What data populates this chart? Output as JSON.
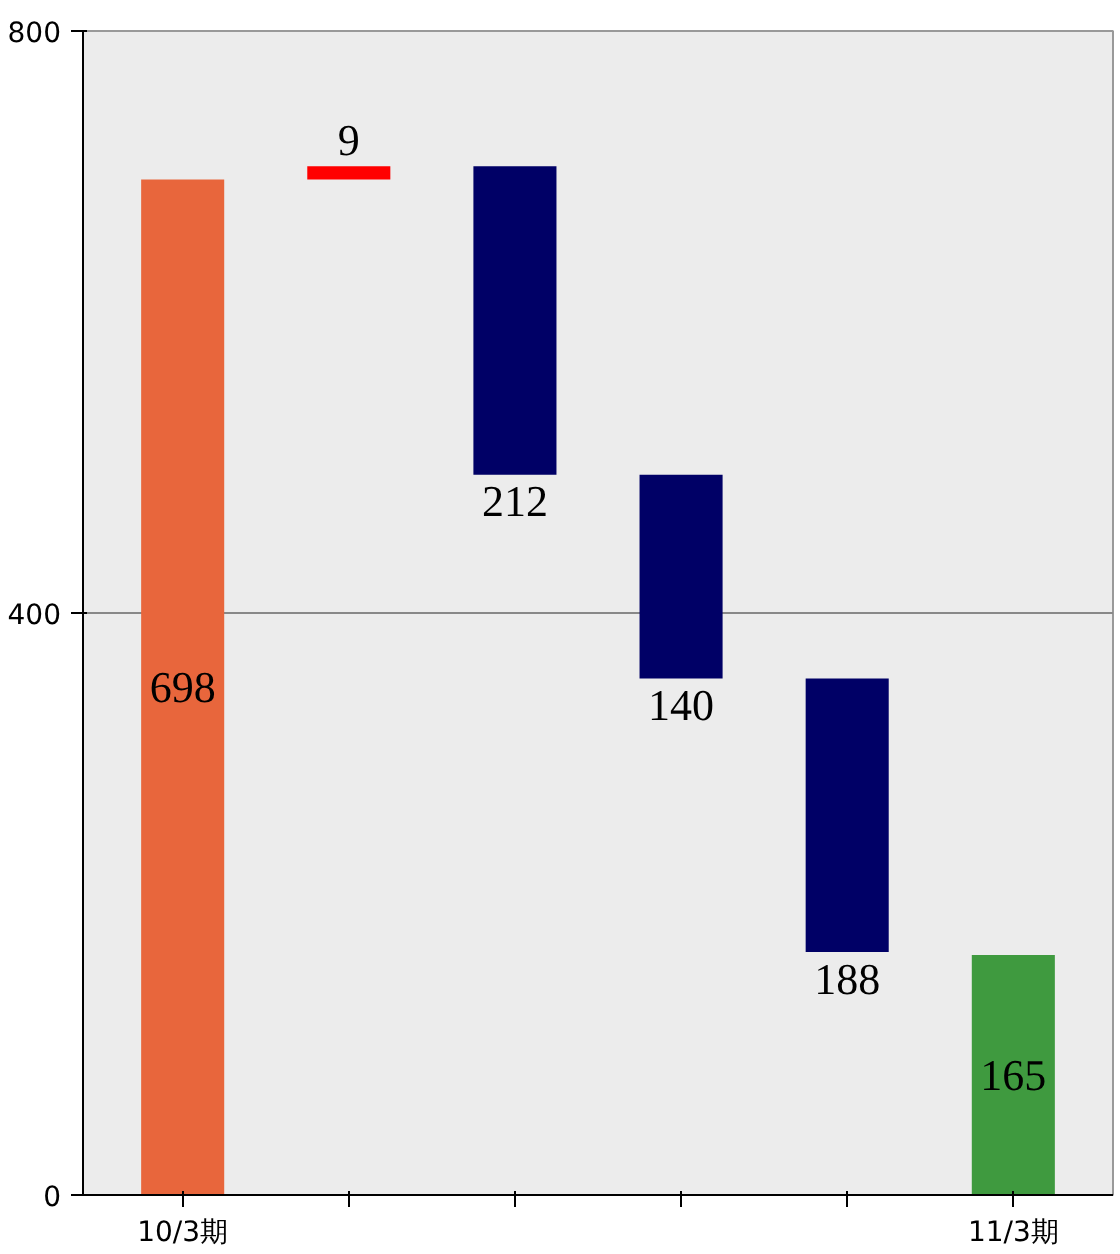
{
  "chart_data": {
    "type": "bar",
    "categories": [
      "10/3期",
      null,
      null,
      null,
      null,
      "11/3期"
    ],
    "values": [
      698,
      9,
      212,
      140,
      188,
      165
    ],
    "base": [
      0,
      698,
      495,
      355,
      167,
      0
    ],
    "colors": [
      "#e8663c",
      "#ff0000",
      "#000066",
      "#000066",
      "#000066",
      "#3f9a3f"
    ],
    "ylim": [
      0,
      800
    ],
    "yticks": [
      0,
      400,
      800
    ],
    "grid": "y",
    "data_labels": true
  }
}
